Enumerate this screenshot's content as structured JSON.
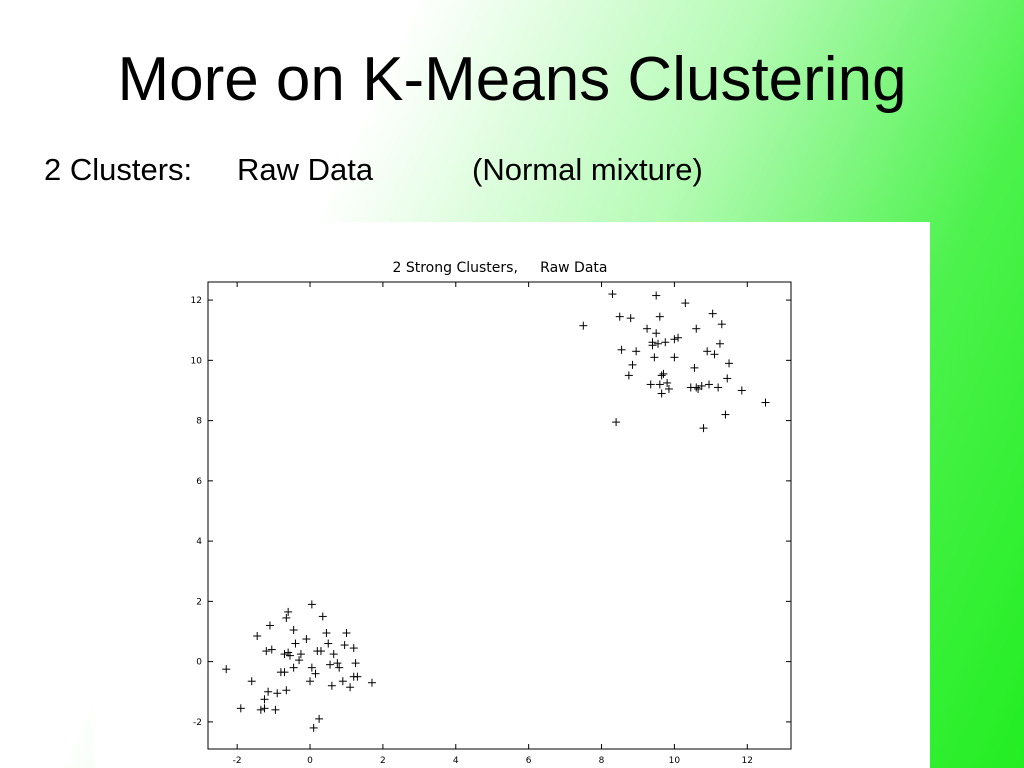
{
  "slide": {
    "title": "More on K-Means Clustering",
    "subtitle_parts": [
      "2 Clusters:",
      "Raw Data",
      "(Normal mixture)"
    ]
  },
  "chart_data": {
    "type": "scatter",
    "title": "2 Strong Clusters,     Raw Data",
    "xlabel": "",
    "ylabel": "",
    "xlim": [
      -2.8,
      13.2
    ],
    "ylim": [
      -2.9,
      12.6
    ],
    "xticks": [
      -2,
      0,
      2,
      4,
      6,
      8,
      10,
      12
    ],
    "yticks": [
      -2,
      0,
      2,
      4,
      6,
      8,
      10,
      12
    ],
    "grid": false,
    "marker": "+",
    "series": [
      {
        "points": [
          [
            -2.3,
            -0.25
          ],
          [
            -1.9,
            -1.55
          ],
          [
            -1.6,
            -0.65
          ],
          [
            -1.45,
            0.85
          ],
          [
            -1.35,
            -1.6
          ],
          [
            -1.25,
            -1.25
          ],
          [
            -1.25,
            -1.55
          ],
          [
            -1.2,
            0.35
          ],
          [
            -1.15,
            -1.0
          ],
          [
            -1.1,
            1.2
          ],
          [
            -1.05,
            0.4
          ],
          [
            -0.95,
            -1.6
          ],
          [
            -0.9,
            -1.05
          ],
          [
            -0.8,
            -0.35
          ],
          [
            -0.7,
            0.25
          ],
          [
            -0.7,
            -0.35
          ],
          [
            -0.65,
            -0.95
          ],
          [
            -0.65,
            1.45
          ],
          [
            -0.6,
            0.3
          ],
          [
            -0.6,
            1.65
          ],
          [
            -0.55,
            0.2
          ],
          [
            -0.45,
            -0.2
          ],
          [
            -0.45,
            1.05
          ],
          [
            -0.4,
            0.6
          ],
          [
            -0.25,
            0.25
          ],
          [
            -0.1,
            0.75
          ],
          [
            0.0,
            -0.65
          ],
          [
            0.05,
            -0.2
          ],
          [
            0.05,
            1.9
          ],
          [
            0.1,
            -2.2
          ],
          [
            0.15,
            -0.4
          ],
          [
            0.2,
            0.35
          ],
          [
            0.25,
            -1.9
          ],
          [
            0.3,
            0.35
          ],
          [
            0.35,
            1.5
          ],
          [
            0.45,
            0.95
          ],
          [
            0.5,
            0.6
          ],
          [
            0.55,
            -0.1
          ],
          [
            0.6,
            -0.8
          ],
          [
            0.65,
            0.25
          ],
          [
            0.75,
            -0.05
          ],
          [
            0.8,
            -0.2
          ],
          [
            0.9,
            -0.65
          ],
          [
            0.95,
            0.55
          ],
          [
            1.0,
            0.95
          ],
          [
            1.1,
            -0.85
          ],
          [
            1.2,
            0.45
          ],
          [
            1.25,
            -0.05
          ],
          [
            1.3,
            -0.5
          ],
          [
            1.7,
            -0.7
          ],
          [
            1.2,
            -0.5
          ],
          [
            -0.3,
            0.05
          ],
          [
            7.5,
            11.15
          ],
          [
            8.3,
            12.2
          ],
          [
            8.4,
            7.95
          ],
          [
            8.5,
            11.45
          ],
          [
            8.55,
            10.35
          ],
          [
            8.75,
            9.5
          ],
          [
            8.8,
            11.4
          ],
          [
            8.85,
            9.85
          ],
          [
            8.95,
            10.3
          ],
          [
            9.25,
            11.05
          ],
          [
            9.35,
            9.2
          ],
          [
            9.4,
            10.6
          ],
          [
            9.45,
            10.1
          ],
          [
            9.5,
            10.9
          ],
          [
            9.5,
            12.15
          ],
          [
            9.55,
            10.55
          ],
          [
            9.6,
            11.45
          ],
          [
            9.6,
            9.2
          ],
          [
            9.65,
            9.5
          ],
          [
            9.65,
            8.9
          ],
          [
            9.7,
            9.55
          ],
          [
            9.75,
            10.6
          ],
          [
            9.8,
            9.25
          ],
          [
            9.85,
            9.05
          ],
          [
            10.0,
            10.1
          ],
          [
            10.0,
            10.7
          ],
          [
            10.1,
            10.75
          ],
          [
            10.3,
            11.9
          ],
          [
            10.45,
            9.1
          ],
          [
            10.55,
            9.75
          ],
          [
            10.6,
            11.05
          ],
          [
            10.65,
            9.05
          ],
          [
            10.75,
            9.15
          ],
          [
            10.8,
            7.75
          ],
          [
            10.9,
            10.3
          ],
          [
            10.95,
            9.2
          ],
          [
            11.05,
            11.55
          ],
          [
            11.1,
            10.2
          ],
          [
            11.2,
            9.1
          ],
          [
            11.25,
            10.55
          ],
          [
            11.3,
            11.2
          ],
          [
            11.4,
            8.2
          ],
          [
            11.45,
            9.4
          ],
          [
            11.5,
            9.9
          ],
          [
            11.85,
            9.0
          ],
          [
            12.5,
            8.6
          ],
          [
            10.6,
            9.1
          ],
          [
            9.4,
            10.5
          ]
        ]
      }
    ]
  }
}
